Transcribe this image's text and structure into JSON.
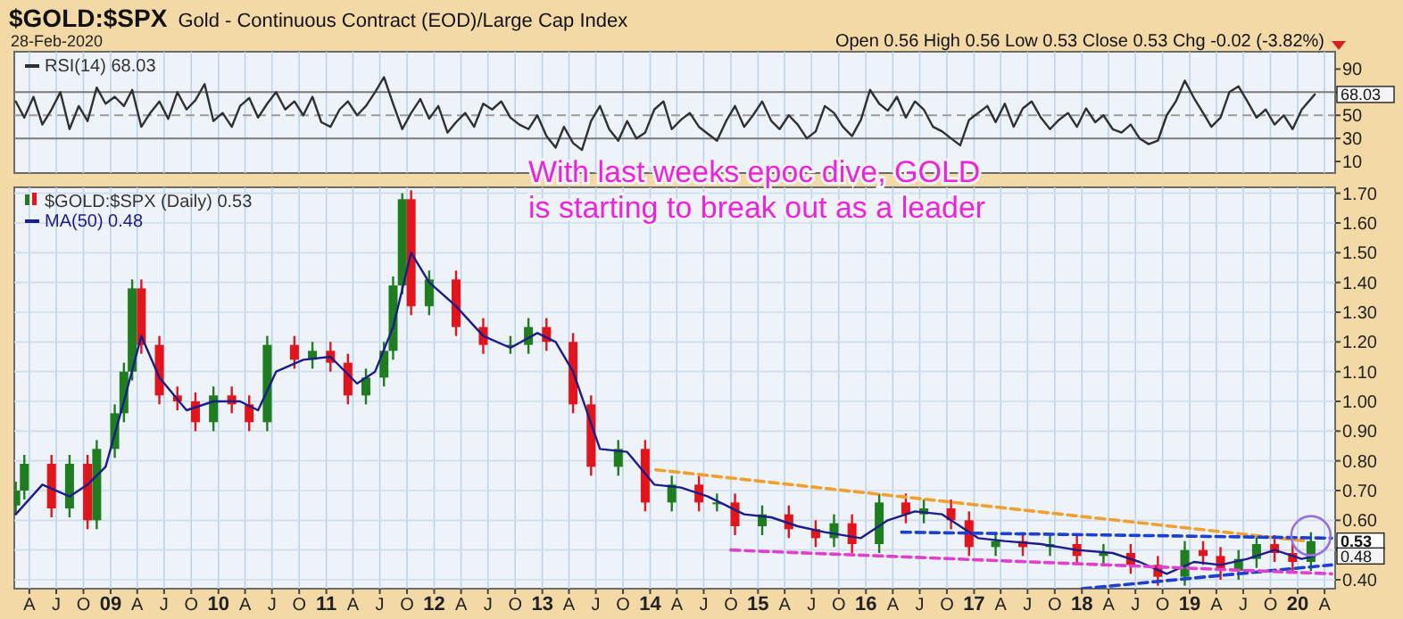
{
  "chart_data": [
    {
      "type": "line",
      "title": "$GOLD:$SPX",
      "subtitle": "Gold - Continuous Contract (EOD)/Large Cap Index",
      "annotations": [
        "28-Feb-2020",
        "Open 0.56 High 0.56 Low 0.53 Close 0.53 Chg -0.02 (-3.82%)",
        {
          "text": "68.03",
          "x": "2020-02-28",
          "y": 68.03
        }
      ],
      "xlim": [
        "2008-02-10",
        "2020-05-07"
      ],
      "ylim": [
        0,
        105
      ],
      "yticks": [
        10,
        30,
        50,
        {
          "value": 70,
          "label": null
        },
        90
      ],
      "tick_labels": "y",
      "grid": "x",
      "legend": "top left",
      "xticks": [
        {
          "value": "2008-04-01",
          "label": null
        },
        {
          "value": "2008-07-01",
          "label": null
        },
        {
          "value": "2008-10-01",
          "label": null
        },
        {
          "value": "2009-01-01",
          "label": null
        },
        {
          "value": "2009-04-01",
          "label": null
        },
        {
          "value": "2009-07-01",
          "label": null
        },
        {
          "value": "2009-10-01",
          "label": null
        },
        {
          "value": "2010-01-01",
          "label": null
        },
        {
          "value": "2010-04-01",
          "label": null
        },
        {
          "value": "2010-07-01",
          "label": null
        },
        {
          "value": "2010-10-01",
          "label": null
        },
        {
          "value": "2011-01-01",
          "label": null
        },
        {
          "value": "2011-04-01",
          "label": null
        },
        {
          "value": "2011-07-01",
          "label": null
        },
        {
          "value": "2011-10-01",
          "label": null
        },
        {
          "value": "2012-01-01",
          "label": null
        },
        {
          "value": "2012-04-01",
          "label": null
        },
        {
          "value": "2012-07-01",
          "label": null
        },
        {
          "value": "2012-10-01",
          "label": null
        },
        {
          "value": "2013-01-01",
          "label": null
        },
        {
          "value": "2013-04-01",
          "label": null
        },
        {
          "value": "2013-07-01",
          "label": null
        },
        {
          "value": "2013-10-01",
          "label": null
        },
        {
          "value": "2014-01-01",
          "label": null
        },
        {
          "value": "2014-04-01",
          "label": null
        },
        {
          "value": "2014-07-01",
          "label": null
        },
        {
          "value": "2014-10-01",
          "label": null
        },
        {
          "value": "2015-01-01",
          "label": null
        },
        {
          "value": "2015-04-01",
          "label": null
        },
        {
          "value": "2015-07-01",
          "label": null
        },
        {
          "value": "2015-10-01",
          "label": null
        },
        {
          "value": "2016-01-01",
          "label": null
        },
        {
          "value": "2016-04-01",
          "label": null
        },
        {
          "value": "2016-07-01",
          "label": null
        },
        {
          "value": "2016-10-01",
          "label": null
        },
        {
          "value": "2017-01-01",
          "label": null
        },
        {
          "value": "2017-04-01",
          "label": null
        },
        {
          "value": "2017-07-01",
          "label": null
        },
        {
          "value": "2017-10-01",
          "label": null
        },
        {
          "value": "2018-01-01",
          "label": null
        },
        {
          "value": "2018-04-01",
          "label": null
        },
        {
          "value": "2018-07-01",
          "label": null
        },
        {
          "value": "2018-10-01",
          "label": null
        },
        {
          "value": "2019-01-01",
          "label": null
        },
        {
          "value": "2019-04-01",
          "label": null
        },
        {
          "value": "2019-07-01",
          "label": null
        },
        {
          "value": "2019-10-01",
          "label": null
        },
        {
          "value": "2020-01-01",
          "label": null
        },
        {
          "value": "2020-04-01",
          "label": null
        }
      ],
      "ref_lines": [
        {
          "axis": "y",
          "value": 70,
          "color": "#7a7a7a"
        },
        {
          "axis": "y",
          "value": 30,
          "color": "#7a7a7a"
        },
        {
          "axis": "y",
          "value": 50,
          "color": "#9a9a9a",
          "line_style": "dashed"
        }
      ],
      "series": [
        {
          "name": "RSI(14) 68.03",
          "color": "#303030",
          "x": [
            "2008-02-15",
            "2008-03-15",
            "2008-04-15",
            "2008-05-15",
            "2008-06-15",
            "2008-07-15",
            "2008-08-15",
            "2008-09-15",
            "2008-10-15",
            "2008-11-15",
            "2008-12-15",
            "2009-01-15",
            "2009-02-15",
            "2009-03-15",
            "2009-04-15",
            "2009-05-15",
            "2009-06-15",
            "2009-07-15",
            "2009-08-15",
            "2009-09-15",
            "2009-10-15",
            "2009-11-15",
            "2009-12-15",
            "2010-01-15",
            "2010-02-15",
            "2010-03-15",
            "2010-04-15",
            "2010-05-15",
            "2010-06-15",
            "2010-07-15",
            "2010-08-15",
            "2010-09-15",
            "2010-10-15",
            "2010-11-15",
            "2010-12-15",
            "2011-01-15",
            "2011-02-15",
            "2011-03-15",
            "2011-04-15",
            "2011-05-15",
            "2011-06-15",
            "2011-07-15",
            "2011-08-15",
            "2011-09-15",
            "2011-10-15",
            "2011-11-15",
            "2011-12-15",
            "2012-01-15",
            "2012-02-15",
            "2012-03-15",
            "2012-04-15",
            "2012-05-15",
            "2012-06-15",
            "2012-07-15",
            "2012-08-15",
            "2012-09-15",
            "2012-10-15",
            "2012-11-15",
            "2012-12-15",
            "2013-01-15",
            "2013-02-15",
            "2013-03-15",
            "2013-04-15",
            "2013-05-15",
            "2013-06-15",
            "2013-07-15",
            "2013-08-15",
            "2013-09-15",
            "2013-10-15",
            "2013-11-15",
            "2013-12-15",
            "2014-01-15",
            "2014-02-15",
            "2014-03-15",
            "2014-04-15",
            "2014-05-15",
            "2014-06-15",
            "2014-07-15",
            "2014-08-15",
            "2014-09-15",
            "2014-10-15",
            "2014-11-15",
            "2014-12-15",
            "2015-01-15",
            "2015-02-15",
            "2015-03-15",
            "2015-04-15",
            "2015-05-15",
            "2015-06-15",
            "2015-07-15",
            "2015-08-15",
            "2015-09-15",
            "2015-10-15",
            "2015-11-15",
            "2015-12-15",
            "2016-01-15",
            "2016-02-15",
            "2016-03-15",
            "2016-04-15",
            "2016-05-15",
            "2016-06-15",
            "2016-07-15",
            "2016-08-15",
            "2016-09-15",
            "2016-10-15",
            "2016-11-15",
            "2016-12-15",
            "2017-01-15",
            "2017-02-15",
            "2017-03-15",
            "2017-04-15",
            "2017-05-15",
            "2017-06-15",
            "2017-07-15",
            "2017-08-15",
            "2017-09-15",
            "2017-10-15",
            "2017-11-15",
            "2017-12-15",
            "2018-01-15",
            "2018-02-15",
            "2018-03-15",
            "2018-04-15",
            "2018-05-15",
            "2018-06-15",
            "2018-07-15",
            "2018-08-15",
            "2018-09-15",
            "2018-10-15",
            "2018-11-15",
            "2018-12-15",
            "2019-01-15",
            "2019-02-15",
            "2019-03-15",
            "2019-04-15",
            "2019-05-15",
            "2019-06-15",
            "2019-07-15",
            "2019-08-15",
            "2019-09-15",
            "2019-10-15",
            "2019-11-15",
            "2019-12-15",
            "2020-01-15",
            "2020-02-28"
          ],
          "values": [
            62,
            48,
            66,
            42,
            55,
            70,
            38,
            58,
            45,
            74,
            60,
            66,
            58,
            72,
            40,
            52,
            62,
            47,
            70,
            55,
            63,
            77,
            45,
            52,
            40,
            58,
            65,
            48,
            60,
            70,
            55,
            62,
            50,
            66,
            44,
            40,
            55,
            62,
            50,
            58,
            70,
            83,
            60,
            38,
            52,
            64,
            47,
            58,
            35,
            44,
            52,
            40,
            60,
            55,
            62,
            48,
            42,
            38,
            50,
            32,
            22,
            40,
            26,
            20,
            45,
            58,
            38,
            28,
            45,
            30,
            35,
            55,
            62,
            38,
            46,
            52,
            40,
            34,
            28,
            45,
            58,
            40,
            50,
            62,
            45,
            38,
            50,
            42,
            30,
            36,
            58,
            52,
            40,
            32,
            46,
            72,
            60,
            54,
            66,
            48,
            62,
            55,
            40,
            36,
            30,
            24,
            46,
            52,
            58,
            44,
            60,
            40,
            56,
            62,
            48,
            38,
            46,
            52,
            40,
            56,
            44,
            50,
            38,
            35,
            42,
            30,
            25,
            28,
            50,
            62,
            80,
            65,
            52,
            40,
            48,
            70,
            75,
            62,
            48,
            55,
            42,
            50,
            38,
            55,
            68.03
          ]
        }
      ]
    },
    {
      "type": "candlestick",
      "legend": "top left",
      "grid": true,
      "annotations": [
        "With last weeks epoc dive,  GOLD\nis starting to break out as a leader",
        {
          "text": "0.53",
          "x": "2020-02-28",
          "y": 0.53
        },
        {
          "text": "0.48",
          "x": "2020-02-28",
          "y": 0.48
        }
      ],
      "xlim": [
        "2008-02-10",
        "2020-05-07"
      ],
      "ylim": [
        0.37,
        1.72
      ],
      "yticks": [
        {
          "value": 0.4,
          "label": "0.40"
        },
        {
          "value": 0.5,
          "label": null
        },
        {
          "value": 0.6,
          "label": "0.60"
        },
        {
          "value": 0.7,
          "label": "0.70"
        },
        {
          "value": 0.8,
          "label": "0.80"
        },
        {
          "value": 0.9,
          "label": "0.90"
        },
        {
          "value": 1.0,
          "label": "1.00"
        },
        {
          "value": 1.1,
          "label": "1.10"
        },
        {
          "value": 1.2,
          "label": "1.20"
        },
        {
          "value": 1.3,
          "label": "1.30"
        },
        {
          "value": 1.4,
          "label": "1.40"
        },
        {
          "value": 1.5,
          "label": "1.50"
        },
        {
          "value": 1.6,
          "label": "1.60"
        },
        {
          "value": 1.7,
          "label": "1.70"
        }
      ],
      "xticks": [
        {
          "value": "2008-04-01",
          "label": "A"
        },
        {
          "value": "2008-07-01",
          "label": "J"
        },
        {
          "value": "2008-10-01",
          "label": "O"
        },
        {
          "value": "2009-01-01",
          "label": "09"
        },
        {
          "value": "2009-04-01",
          "label": "A"
        },
        {
          "value": "2009-07-01",
          "label": "J"
        },
        {
          "value": "2009-10-01",
          "label": "O"
        },
        {
          "value": "2010-01-01",
          "label": "10"
        },
        {
          "value": "2010-04-01",
          "label": "A"
        },
        {
          "value": "2010-07-01",
          "label": "J"
        },
        {
          "value": "2010-10-01",
          "label": "O"
        },
        {
          "value": "2011-01-01",
          "label": "11"
        },
        {
          "value": "2011-04-01",
          "label": "A"
        },
        {
          "value": "2011-07-01",
          "label": "J"
        },
        {
          "value": "2011-10-01",
          "label": "O"
        },
        {
          "value": "2012-01-01",
          "label": "12"
        },
        {
          "value": "2012-04-01",
          "label": "A"
        },
        {
          "value": "2012-07-01",
          "label": "J"
        },
        {
          "value": "2012-10-01",
          "label": "O"
        },
        {
          "value": "2013-01-01",
          "label": "13"
        },
        {
          "value": "2013-04-01",
          "label": "A"
        },
        {
          "value": "2013-07-01",
          "label": "J"
        },
        {
          "value": "2013-10-01",
          "label": "O"
        },
        {
          "value": "2014-01-01",
          "label": "14"
        },
        {
          "value": "2014-04-01",
          "label": "A"
        },
        {
          "value": "2014-07-01",
          "label": "J"
        },
        {
          "value": "2014-10-01",
          "label": "O"
        },
        {
          "value": "2015-01-01",
          "label": "15"
        },
        {
          "value": "2015-04-01",
          "label": "A"
        },
        {
          "value": "2015-07-01",
          "label": "J"
        },
        {
          "value": "2015-10-01",
          "label": "O"
        },
        {
          "value": "2016-01-01",
          "label": "16"
        },
        {
          "value": "2016-04-01",
          "label": "A"
        },
        {
          "value": "2016-07-01",
          "label": "J"
        },
        {
          "value": "2016-10-01",
          "label": "O"
        },
        {
          "value": "2017-01-01",
          "label": "17"
        },
        {
          "value": "2017-04-01",
          "label": "A"
        },
        {
          "value": "2017-07-01",
          "label": "J"
        },
        {
          "value": "2017-10-01",
          "label": "O"
        },
        {
          "value": "2018-01-01",
          "label": "18"
        },
        {
          "value": "2018-04-01",
          "label": "A"
        },
        {
          "value": "2018-07-01",
          "label": "J"
        },
        {
          "value": "2018-10-01",
          "label": "O"
        },
        {
          "value": "2019-01-01",
          "label": "19"
        },
        {
          "value": "2019-04-01",
          "label": "A"
        },
        {
          "value": "2019-07-01",
          "label": "J"
        },
        {
          "value": "2019-10-01",
          "label": "O"
        },
        {
          "value": "2020-01-01",
          "label": "20"
        },
        {
          "value": "2020-04-01",
          "label": "A"
        }
      ],
      "series": [
        {
          "name": "$GOLD:$SPX (Daily) 0.53",
          "x": [
            "2008-02-15",
            "2008-03-15",
            "2008-06-15",
            "2008-08-15",
            "2008-10-15",
            "2008-11-15",
            "2009-01-15",
            "2009-02-15",
            "2009-03-15",
            "2009-04-15",
            "2009-06-15",
            "2009-08-15",
            "2009-10-15",
            "2009-12-15",
            "2010-02-15",
            "2010-04-15",
            "2010-06-15",
            "2010-09-15",
            "2010-11-15",
            "2011-01-15",
            "2011-03-15",
            "2011-05-15",
            "2011-07-15",
            "2011-08-15",
            "2011-09-15",
            "2011-10-15",
            "2011-12-15",
            "2012-03-15",
            "2012-06-15",
            "2012-09-15",
            "2012-11-15",
            "2013-01-15",
            "2013-04-15",
            "2013-06-15",
            "2013-09-15",
            "2013-12-15",
            "2014-03-15",
            "2014-06-15",
            "2014-08-15",
            "2014-10-15",
            "2015-01-15",
            "2015-04-15",
            "2015-07-15",
            "2015-09-15",
            "2015-11-15",
            "2016-02-15",
            "2016-05-15",
            "2016-07-15",
            "2016-10-15",
            "2016-12-15",
            "2017-03-15",
            "2017-06-15",
            "2017-09-15",
            "2017-12-15",
            "2018-03-15",
            "2018-06-15",
            "2018-09-15",
            "2018-12-15",
            "2019-02-15",
            "2019-04-15",
            "2019-06-15",
            "2019-08-15",
            "2019-10-15",
            "2019-12-15",
            "2020-02-15"
          ],
          "ohlc": [
            [
              0.65,
              0.73,
              0.62,
              0.7
            ],
            [
              0.7,
              0.82,
              0.67,
              0.79
            ],
            [
              0.79,
              0.82,
              0.61,
              0.64
            ],
            [
              0.64,
              0.82,
              0.61,
              0.79
            ],
            [
              0.79,
              0.82,
              0.57,
              0.6
            ],
            [
              0.6,
              0.87,
              0.57,
              0.84
            ],
            [
              0.84,
              0.99,
              0.81,
              0.96
            ],
            [
              0.96,
              1.13,
              0.93,
              1.1
            ],
            [
              1.1,
              1.41,
              1.07,
              1.38
            ],
            [
              1.38,
              1.41,
              1.16,
              1.19
            ],
            [
              1.19,
              1.22,
              0.99,
              1.02
            ],
            [
              1.02,
              1.05,
              0.97,
              1.0
            ],
            [
              1.0,
              1.03,
              0.9,
              0.93
            ],
            [
              0.93,
              1.05,
              0.9,
              1.02
            ],
            [
              1.02,
              1.05,
              0.96,
              0.99
            ],
            [
              0.99,
              1.02,
              0.9,
              0.93
            ],
            [
              0.93,
              1.22,
              0.9,
              1.19
            ],
            [
              1.19,
              1.22,
              1.11,
              1.14
            ],
            [
              1.14,
              1.2,
              1.11,
              1.17
            ],
            [
              1.17,
              1.2,
              1.1,
              1.13
            ],
            [
              1.13,
              1.16,
              0.99,
              1.02
            ],
            [
              1.02,
              1.11,
              0.99,
              1.08
            ],
            [
              1.08,
              1.2,
              1.05,
              1.17
            ],
            [
              1.17,
              1.42,
              1.14,
              1.39
            ],
            [
              1.39,
              1.7,
              1.36,
              1.68
            ],
            [
              1.68,
              1.71,
              1.29,
              1.32
            ],
            [
              1.32,
              1.44,
              1.29,
              1.41
            ],
            [
              1.41,
              1.44,
              1.22,
              1.25
            ],
            [
              1.25,
              1.28,
              1.16,
              1.19
            ],
            [
              1.19,
              1.22,
              1.16,
              1.19
            ],
            [
              1.19,
              1.28,
              1.16,
              1.25
            ],
            [
              1.25,
              1.28,
              1.17,
              1.2
            ],
            [
              1.2,
              1.23,
              0.96,
              0.99
            ],
            [
              0.99,
              1.02,
              0.75,
              0.78
            ],
            [
              0.78,
              0.87,
              0.75,
              0.84
            ],
            [
              0.84,
              0.87,
              0.63,
              0.66
            ],
            [
              0.66,
              0.75,
              0.63,
              0.72
            ],
            [
              0.72,
              0.75,
              0.63,
              0.66
            ],
            [
              0.66,
              0.69,
              0.63,
              0.66
            ],
            [
              0.66,
              0.69,
              0.55,
              0.58
            ],
            [
              0.58,
              0.65,
              0.55,
              0.62
            ],
            [
              0.62,
              0.65,
              0.54,
              0.57
            ],
            [
              0.57,
              0.6,
              0.51,
              0.54
            ],
            [
              0.54,
              0.62,
              0.51,
              0.59
            ],
            [
              0.59,
              0.62,
              0.49,
              0.52
            ],
            [
              0.52,
              0.69,
              0.49,
              0.66
            ],
            [
              0.66,
              0.69,
              0.59,
              0.62
            ],
            [
              0.62,
              0.67,
              0.59,
              0.64
            ],
            [
              0.64,
              0.67,
              0.57,
              0.6
            ],
            [
              0.6,
              0.63,
              0.48,
              0.51
            ],
            [
              0.51,
              0.56,
              0.48,
              0.53
            ],
            [
              0.53,
              0.56,
              0.48,
              0.51
            ],
            [
              0.51,
              0.55,
              0.48,
              0.52
            ],
            [
              0.52,
              0.55,
              0.45,
              0.48
            ],
            [
              0.48,
              0.52,
              0.45,
              0.49
            ],
            [
              0.49,
              0.52,
              0.42,
              0.45
            ],
            [
              0.45,
              0.48,
              0.38,
              0.41
            ],
            [
              0.41,
              0.53,
              0.38,
              0.5
            ],
            [
              0.5,
              0.53,
              0.45,
              0.48
            ],
            [
              0.48,
              0.51,
              0.4,
              0.43
            ],
            [
              0.43,
              0.5,
              0.4,
              0.47
            ],
            [
              0.47,
              0.55,
              0.44,
              0.52
            ],
            [
              0.52,
              0.55,
              0.46,
              0.49
            ],
            [
              0.49,
              0.52,
              0.43,
              0.46
            ],
            [
              0.46,
              0.56,
              0.43,
              0.53
            ]
          ],
          "colors": [
            "#1e7d1e",
            "#1e7d1e",
            "#e3141b",
            "#1e7d1e",
            "#e3141b",
            "#1e7d1e",
            "#1e7d1e",
            "#1e7d1e",
            "#1e7d1e",
            "#e3141b",
            "#e3141b",
            "#e3141b",
            "#e3141b",
            "#1e7d1e",
            "#e3141b",
            "#e3141b",
            "#1e7d1e",
            "#e3141b",
            "#1e7d1e",
            "#e3141b",
            "#e3141b",
            "#1e7d1e",
            "#1e7d1e",
            "#1e7d1e",
            "#1e7d1e",
            "#e3141b",
            "#1e7d1e",
            "#e3141b",
            "#e3141b",
            "#1e7d1e",
            "#1e7d1e",
            "#e3141b",
            "#e3141b",
            "#e3141b",
            "#1e7d1e",
            "#e3141b",
            "#1e7d1e",
            "#e3141b",
            "#1e7d1e",
            "#e3141b",
            "#1e7d1e",
            "#e3141b",
            "#e3141b",
            "#1e7d1e",
            "#e3141b",
            "#1e7d1e",
            "#e3141b",
            "#1e7d1e",
            "#e3141b",
            "#e3141b",
            "#1e7d1e",
            "#e3141b",
            "#1e7d1e",
            "#e3141b",
            "#1e7d1e",
            "#e3141b",
            "#e3141b",
            "#1e7d1e",
            "#e3141b",
            "#e3141b",
            "#1e7d1e",
            "#1e7d1e",
            "#e3141b",
            "#e3141b",
            "#1e7d1e"
          ]
        },
        {
          "name": "MA(50) 0.48",
          "type": "line",
          "color": "#1c1c8a",
          "x": [
            "2008-02-15",
            "2008-05-15",
            "2008-08-15",
            "2008-10-15",
            "2008-12-15",
            "2009-02-15",
            "2009-04-15",
            "2009-06-15",
            "2009-09-15",
            "2009-12-15",
            "2010-03-15",
            "2010-05-15",
            "2010-07-15",
            "2010-10-15",
            "2011-01-15",
            "2011-04-15",
            "2011-06-15",
            "2011-08-15",
            "2011-10-15",
            "2011-12-15",
            "2012-03-15",
            "2012-06-15",
            "2012-09-15",
            "2012-12-15",
            "2013-02-15",
            "2013-04-15",
            "2013-07-15",
            "2013-10-15",
            "2014-01-15",
            "2014-04-15",
            "2014-07-15",
            "2014-11-15",
            "2015-02-15",
            "2015-05-15",
            "2015-08-15",
            "2015-12-15",
            "2016-03-15",
            "2016-06-15",
            "2016-09-15",
            "2017-01-15",
            "2017-04-15",
            "2017-08-15",
            "2017-12-15",
            "2018-04-15",
            "2018-07-15",
            "2018-10-15",
            "2019-01-15",
            "2019-04-15",
            "2019-07-15",
            "2019-10-15",
            "2020-01-15",
            "2020-02-28"
          ],
          "values": [
            0.62,
            0.72,
            0.68,
            0.72,
            0.78,
            1.0,
            1.22,
            1.08,
            0.97,
            1.0,
            1.0,
            0.97,
            1.1,
            1.14,
            1.15,
            1.06,
            1.1,
            1.25,
            1.5,
            1.4,
            1.32,
            1.22,
            1.18,
            1.23,
            1.2,
            1.1,
            0.84,
            0.83,
            0.72,
            0.71,
            0.68,
            0.62,
            0.61,
            0.58,
            0.56,
            0.54,
            0.6,
            0.63,
            0.62,
            0.54,
            0.53,
            0.52,
            0.5,
            0.49,
            0.46,
            0.42,
            0.46,
            0.45,
            0.47,
            0.5,
            0.47,
            0.48
          ]
        },
        {
          "type": "line",
          "color": "#f0a030",
          "line_style": "dashed",
          "x": [
            "2014-01-20",
            "2020-02-01"
          ],
          "values": [
            0.77,
            0.53
          ]
        },
        {
          "type": "line",
          "color": "#1f3fd0",
          "line_style": "dashed",
          "x": [
            "2016-05-01",
            "2020-04-25"
          ],
          "values": [
            0.56,
            0.54
          ]
        },
        {
          "type": "line",
          "color": "#1f3fd0",
          "line_style": "dashed",
          "x": [
            "2018-01-01",
            "2020-04-25"
          ],
          "values": [
            0.37,
            0.45
          ]
        },
        {
          "type": "line",
          "color": "#e040d0",
          "line_style": "dashed",
          "x": [
            "2014-10-01",
            "2020-04-25"
          ],
          "values": [
            0.5,
            0.42
          ]
        }
      ]
    }
  ]
}
